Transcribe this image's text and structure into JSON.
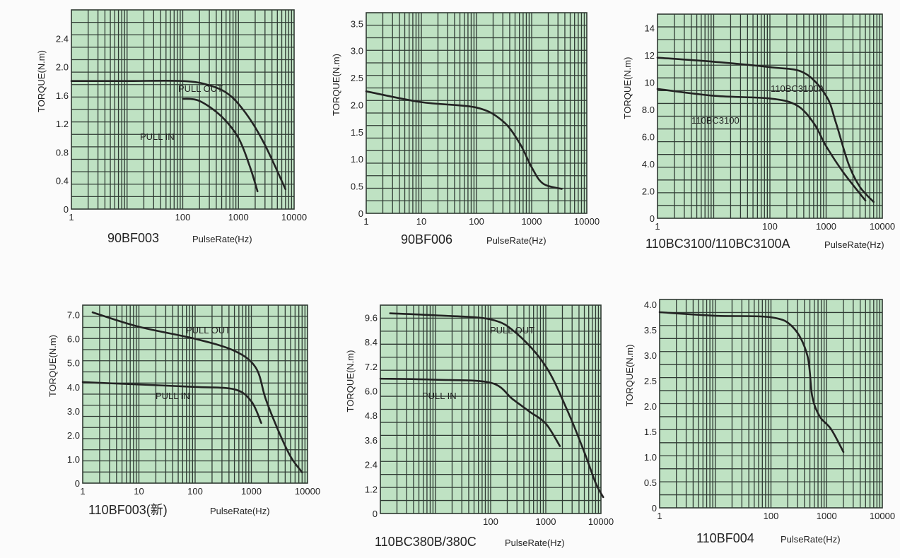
{
  "colors": {
    "plot_bg": "#bfe2c3",
    "grid": "#2f3a33",
    "curve": "#232323",
    "text": "#232323"
  },
  "charts": [
    {
      "name": "90BF003",
      "ylabel": "TORQUE(N.m)",
      "xlabel": "PulseRate(Hz)",
      "xscale": "log",
      "xlim": [
        1,
        10000
      ],
      "xticks": [
        "1",
        "100",
        "1000",
        "10000"
      ],
      "ylim": [
        0,
        2.8
      ],
      "yticks": [
        "0",
        "0.4",
        "0.8",
        "1.2",
        "1.6",
        "2.0",
        "2.4"
      ],
      "annotations": [
        "PULL OUT",
        "PULL IN"
      ],
      "series": [
        {
          "name": "PULL OUT",
          "points": [
            [
              1,
              1.8
            ],
            [
              10,
              1.8
            ],
            [
              100,
              1.8
            ],
            [
              300,
              1.74
            ],
            [
              700,
              1.6
            ],
            [
              1500,
              1.3
            ],
            [
              3000,
              0.9
            ],
            [
              7000,
              0.28
            ]
          ]
        },
        {
          "name": "PULL IN",
          "points": [
            [
              100,
              1.55
            ],
            [
              200,
              1.52
            ],
            [
              500,
              1.3
            ],
            [
              1000,
              1.0
            ],
            [
              1600,
              0.6
            ],
            [
              2200,
              0.25
            ]
          ]
        }
      ]
    },
    {
      "name": "90BF006",
      "ylabel": "TORQUE(N.m)",
      "xlabel": "PulseRate(Hz)",
      "xscale": "log",
      "xlim": [
        1,
        10000
      ],
      "xticks": [
        "1",
        "10",
        "100",
        "1000",
        "10000"
      ],
      "ylim": [
        0,
        3.7
      ],
      "yticks": [
        "0",
        "0.5",
        "1.0",
        "1.5",
        "2.0",
        "2.5",
        "3.0",
        "3.5"
      ],
      "annotations": [],
      "series": [
        {
          "name": "",
          "points": [
            [
              1,
              2.25
            ],
            [
              10,
              2.05
            ],
            [
              100,
              1.95
            ],
            [
              300,
              1.7
            ],
            [
              600,
              1.3
            ],
            [
              1000,
              0.85
            ],
            [
              1600,
              0.55
            ],
            [
              3500,
              0.45
            ]
          ]
        }
      ]
    },
    {
      "name": "110BC3100/110BC3100A",
      "ylabel": "TORQUE(N.m)",
      "xlabel": "PulseRate(Hz)",
      "xscale": "log",
      "xlim": [
        1,
        10000
      ],
      "xticks": [
        "1",
        "100",
        "1000",
        "10000"
      ],
      "ylim": [
        0,
        15
      ],
      "yticks": [
        "0",
        "2.0",
        "4.0",
        "6.0",
        "8.0",
        "10",
        "12",
        "14"
      ],
      "annotations": [
        "110BC3100A",
        "110BC3100"
      ],
      "series": [
        {
          "name": "110BC3100A",
          "points": [
            [
              1,
              11.8
            ],
            [
              10,
              11.5
            ],
            [
              100,
              11.1
            ],
            [
              400,
              10.7
            ],
            [
              1000,
              9.0
            ],
            [
              1500,
              7.0
            ],
            [
              2500,
              4.0
            ],
            [
              4000,
              2.3
            ],
            [
              7000,
              1.2
            ]
          ]
        },
        {
          "name": "110BC3100",
          "points": [
            [
              1,
              9.5
            ],
            [
              10,
              9.0
            ],
            [
              100,
              8.8
            ],
            [
              300,
              8.3
            ],
            [
              600,
              7.0
            ],
            [
              1000,
              5.3
            ],
            [
              2000,
              3.4
            ],
            [
              5000,
              1.3
            ]
          ]
        }
      ]
    },
    {
      "name": "110BF003(新)",
      "ylabel": "TORQUE(N.m)",
      "xlabel": "PulseRate(Hz)",
      "xscale": "log",
      "xlim": [
        1,
        10000
      ],
      "xticks": [
        "1",
        "10",
        "100",
        "1000",
        "10000"
      ],
      "ylim": [
        0,
        7.4
      ],
      "yticks": [
        "0",
        "1.0",
        "2.0",
        "3.0",
        "4.0",
        "5.0",
        "6.0",
        "7.0"
      ],
      "annotations": [
        "PULL OUT",
        "PULL IN"
      ],
      "series": [
        {
          "name": "PULL OUT",
          "points": [
            [
              1.5,
              7.1
            ],
            [
              10,
              6.5
            ],
            [
              100,
              6.0
            ],
            [
              500,
              5.5
            ],
            [
              1200,
              4.8
            ],
            [
              1800,
              3.5
            ],
            [
              3000,
              2.2
            ],
            [
              5000,
              1.1
            ],
            [
              8000,
              0.45
            ]
          ]
        },
        {
          "name": "PULL IN",
          "points": [
            [
              1,
              4.2
            ],
            [
              10,
              4.1
            ],
            [
              100,
              4.0
            ],
            [
              500,
              3.9
            ],
            [
              1000,
              3.4
            ],
            [
              1500,
              2.5
            ]
          ]
        }
      ]
    },
    {
      "name": "110BC380B/380C",
      "ylabel": "TORQUE(N.m)",
      "xlabel": "PulseRate(Hz)",
      "xscale": "log",
      "xlim": [
        1,
        10000
      ],
      "xticks": [
        "100",
        "1000",
        "10000"
      ],
      "ylim": [
        0,
        10.2
      ],
      "yticks": [
        "0",
        "1.2",
        "2.4",
        "3.6",
        "4.8",
        "6.0",
        "7.2",
        "8.4",
        "9.6"
      ],
      "annotations": [
        "PULL OUT",
        "PULL IN"
      ],
      "series": [
        {
          "name": "PULL OUT",
          "points": [
            [
              1.5,
              9.8
            ],
            [
              10,
              9.7
            ],
            [
              100,
              9.5
            ],
            [
              300,
              8.8
            ],
            [
              1000,
              7.2
            ],
            [
              2500,
              5.0
            ],
            [
              5000,
              3.0
            ],
            [
              8000,
              1.5
            ],
            [
              11000,
              0.8
            ]
          ]
        },
        {
          "name": "PULL IN",
          "points": [
            [
              1,
              6.6
            ],
            [
              10,
              6.55
            ],
            [
              100,
              6.4
            ],
            [
              250,
              5.6
            ],
            [
              500,
              5.0
            ],
            [
              1000,
              4.4
            ],
            [
              1800,
              3.3
            ]
          ]
        }
      ]
    },
    {
      "name": "110BF004",
      "ylabel": "TORQUE(N.m)",
      "xlabel": "PulseRate(Hz)",
      "xscale": "log",
      "xlim": [
        1,
        10000
      ],
      "xticks": [
        "1",
        "100",
        "1000",
        "10000"
      ],
      "ylim": [
        0,
        4.1
      ],
      "yticks": [
        "0",
        "0.5",
        "1.0",
        "1.5",
        "2.0",
        "2.5",
        "3.0",
        "3.5",
        "4.0"
      ],
      "annotations": [],
      "series": [
        {
          "name": "",
          "points": [
            [
              1,
              3.85
            ],
            [
              10,
              3.78
            ],
            [
              100,
              3.75
            ],
            [
              250,
              3.55
            ],
            [
              450,
              3.0
            ],
            [
              550,
              2.2
            ],
            [
              750,
              1.8
            ],
            [
              1200,
              1.55
            ],
            [
              2000,
              1.1
            ]
          ]
        }
      ]
    }
  ]
}
